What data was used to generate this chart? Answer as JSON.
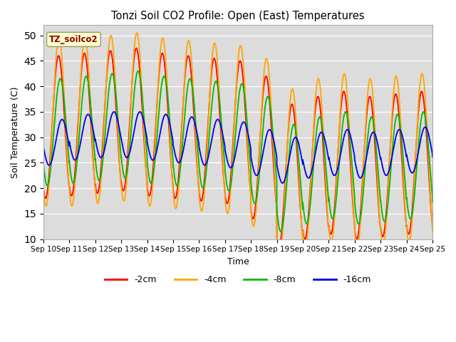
{
  "title": "Tonzi Soil CO2 Profile: Open (East) Temperatures",
  "xlabel": "Time",
  "ylabel": "Soil Temperature (C)",
  "ylim": [
    10,
    52
  ],
  "yticks": [
    10,
    15,
    20,
    25,
    30,
    35,
    40,
    45,
    50
  ],
  "x_start": 10,
  "x_end": 25,
  "x_ticks": [
    10,
    11,
    12,
    13,
    14,
    15,
    16,
    17,
    18,
    19,
    20,
    21,
    22,
    23,
    24,
    25
  ],
  "x_tick_labels": [
    "Sep 10",
    "Sep 11",
    "Sep 12",
    "Sep 13",
    "Sep 14",
    "Sep 15",
    "Sep 16",
    "Sep 17",
    "Sep 18",
    "Sep 19",
    "Sep 20",
    "Sep 21",
    "Sep 22",
    "Sep 23",
    "Sep 24",
    "Sep 25"
  ],
  "colors": {
    "-2cm": "#FF0000",
    "-4cm": "#FFA500",
    "-8cm": "#00BB00",
    "-16cm": "#0000EE"
  },
  "legend_label": "TZ_soilco2",
  "legend_box_color": "#FFFFCC",
  "legend_text_color": "#880000",
  "background_color": "#DCDCDC",
  "series": {
    "-2cm": {
      "base_mean": 32.5,
      "amplitude": 14.0,
      "phase_peak": 0.583,
      "mean_by_day": [
        32.0,
        32.5,
        33.0,
        33.5,
        32.5,
        32.0,
        31.5,
        31.0,
        28.0,
        22.5,
        24.0,
        25.0,
        24.0,
        24.5,
        25.0,
        24.0
      ]
    },
    "-4cm": {
      "base_mean": 33.0,
      "amplitude": 16.5,
      "phase_peak": 0.6,
      "mean_by_day": [
        33.0,
        33.0,
        33.5,
        34.0,
        33.0,
        32.5,
        32.0,
        31.5,
        29.0,
        23.0,
        25.0,
        26.0,
        25.0,
        25.5,
        26.0,
        25.0
      ]
    },
    "-8cm": {
      "base_mean": 31.0,
      "amplitude": 10.5,
      "phase_peak": 0.65,
      "mean_by_day": [
        31.0,
        31.5,
        32.0,
        32.5,
        31.5,
        31.0,
        30.5,
        30.0,
        27.5,
        22.0,
        23.5,
        24.5,
        23.5,
        24.0,
        24.5,
        23.5
      ]
    },
    "-16cm": {
      "base_mean": 29.0,
      "amplitude": 4.5,
      "phase_peak": 0.72,
      "mean_by_day": [
        29.0,
        30.0,
        30.5,
        30.5,
        30.0,
        29.5,
        29.0,
        28.5,
        27.0,
        25.5,
        26.5,
        27.0,
        26.5,
        27.0,
        27.5,
        27.0
      ]
    }
  },
  "linewidth": 1.3
}
